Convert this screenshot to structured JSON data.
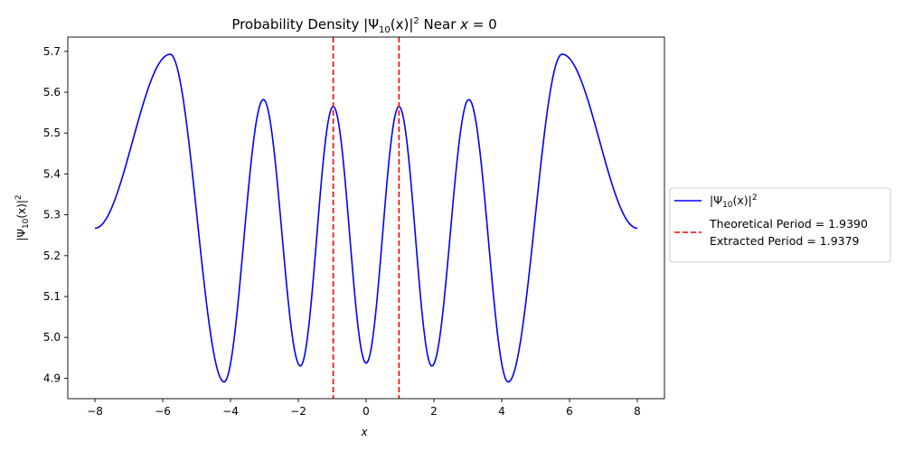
{
  "chart_data": {
    "type": "line",
    "title_main": "Probability Density |Ψ",
    "title_sub": "10",
    "title_mid": "(x)|",
    "title_sup": "2",
    "title_tail": " Near ",
    "title_var": "x",
    "title_eq": " = 0",
    "xlabel": "x",
    "ylabel_main": "|Ψ",
    "ylabel_sub": "10",
    "ylabel_mid": "(x)|",
    "ylabel_sup": "2",
    "xlim": [
      -8.8,
      8.8
    ],
    "ylim": [
      4.85,
      5.735
    ],
    "xticks": [
      -8,
      -6,
      -4,
      -2,
      0,
      2,
      4,
      6,
      8
    ],
    "xtick_labels": [
      "−8",
      "−6",
      "−4",
      "−2",
      "0",
      "2",
      "4",
      "6",
      "8"
    ],
    "yticks": [
      4.9,
      5.0,
      5.1,
      5.2,
      5.3,
      5.4,
      5.5,
      5.6,
      5.7
    ],
    "ytick_labels": [
      "4.9",
      "5.0",
      "5.1",
      "5.2",
      "5.3",
      "5.4",
      "5.5",
      "5.6",
      "5.7"
    ],
    "grid": false,
    "legend_placement": "center-right-outside",
    "series": [
      {
        "name_main": "|Ψ",
        "name_sub": "10",
        "name_mid": "(x)|",
        "name_sup": "2",
        "color": "#0000ff",
        "style": "solid",
        "points": [
          [
            0,
            4.937
          ],
          [
            0.97,
            5.565
          ],
          [
            1.94,
            4.93
          ],
          [
            3.03,
            5.582
          ],
          [
            4.19,
            4.891
          ],
          [
            5.78,
            5.693
          ],
          [
            8.0,
            5.267
          ]
        ]
      }
    ],
    "vlines": [
      {
        "x": -0.97,
        "color": "#ff0000",
        "style": "dashed"
      },
      {
        "x": 0.97,
        "color": "#ff0000",
        "style": "dashed"
      }
    ],
    "legend": {
      "line1": "Theoretical Period = 1.9390",
      "line2": "Extracted Period = 1.9379"
    }
  }
}
